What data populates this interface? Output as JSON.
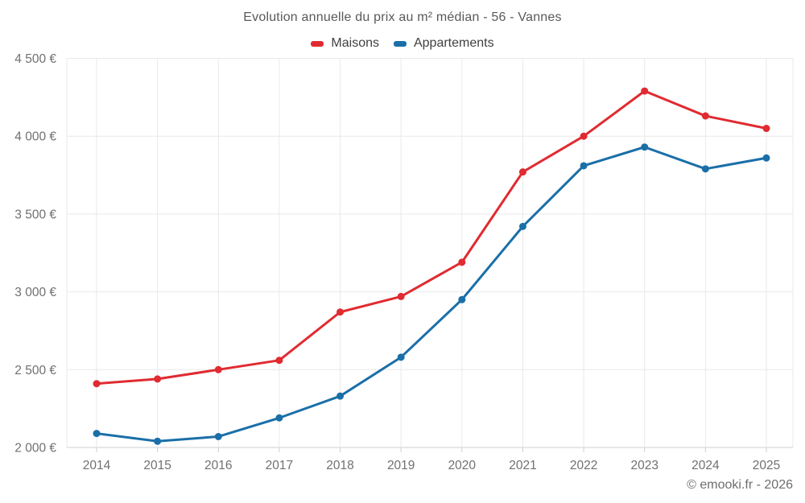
{
  "title": "Evolution annuelle du prix au m² médian - 56 - Vannes",
  "footer": "© emooki.fr - 2026",
  "chart_data": {
    "type": "line",
    "title": "Evolution annuelle du prix au m² médian - 56 - Vannes",
    "categories": [
      "2014",
      "2015",
      "2016",
      "2017",
      "2018",
      "2019",
      "2020",
      "2021",
      "2022",
      "2023",
      "2024",
      "2025"
    ],
    "series": [
      {
        "name": "Maisons",
        "color": "#e02b31",
        "values": [
          2410,
          2440,
          2500,
          2560,
          2870,
          2970,
          3190,
          3770,
          4000,
          4290,
          4130,
          4050
        ]
      },
      {
        "name": "Appartements",
        "color": "#1a6fa8",
        "values": [
          2090,
          2040,
          2070,
          2190,
          2330,
          2580,
          2950,
          3420,
          3810,
          3930,
          3790,
          3860
        ]
      }
    ],
    "xlabel": "",
    "ylabel": "",
    "ylim": [
      2000,
      4500
    ],
    "ytick_step": 500,
    "ytick_labels": [
      "2 000 €",
      "2 500 €",
      "3 000 €",
      "3 500 €",
      "4 000 €",
      "4 500 €"
    ],
    "grid": true,
    "legend_position": "top"
  },
  "colors": {
    "grid": "#e9e9e9",
    "axis": "#cfcfcf",
    "tick_text": "#707070",
    "background": "#ffffff"
  }
}
